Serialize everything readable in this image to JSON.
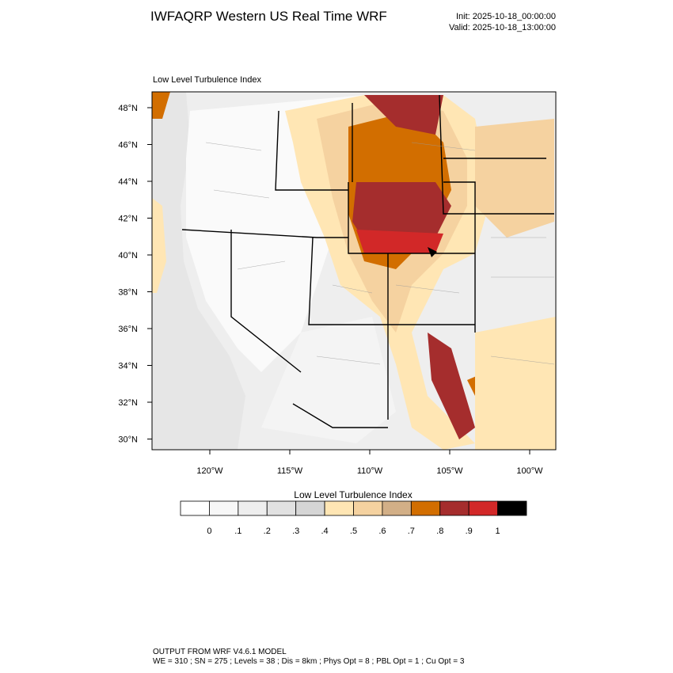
{
  "header": {
    "title": "IWFAQRP Western US Real Time WRF",
    "init": "Init: 2025-10-18_00:00:00",
    "valid": "Valid: 2025-10-18_13:00:00"
  },
  "plot": {
    "label": "Low Level Turbulence Index",
    "lat_labels": [
      "48°N",
      "46°N",
      "44°N",
      "42°N",
      "40°N",
      "38°N",
      "36°N",
      "34°N",
      "32°N",
      "30°N"
    ],
    "lon_labels": [
      "120°W",
      "115°W",
      "110°W",
      "105°W",
      "100°W"
    ]
  },
  "colorbar": {
    "title": "Low Level Turbulence Index",
    "colors": [
      "#ffffff",
      "#f7f7f7",
      "#eeeeee",
      "#e1e1e1",
      "#d5d5d5",
      "#ffe6b4",
      "#f5d2a0",
      "#d2af87",
      "#d26e00",
      "#a52d2d",
      "#d22828",
      "#000000"
    ],
    "labels": [
      "0",
      ".1",
      ".2",
      ".3",
      ".4",
      ".5",
      ".6",
      ".7",
      ".8",
      ".9",
      "1"
    ]
  },
  "footer": {
    "line1": "OUTPUT FROM WRF V4.6.1 MODEL",
    "line2": "WE = 310 ; SN = 275 ; Levels = 38 ; Dis = 8km ; Phys Opt = 8 ; PBL Opt = 1 ; Cu Opt = 3"
  }
}
